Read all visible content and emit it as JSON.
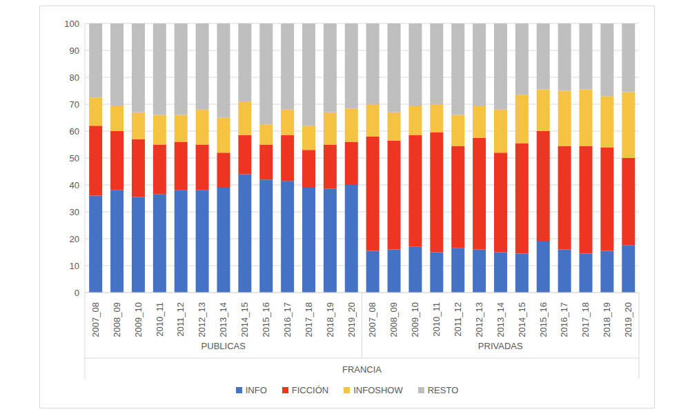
{
  "chart_data": {
    "type": "bar",
    "stacked": true,
    "grid": true,
    "legend": "bottom",
    "categories": [
      "2007_08",
      "2008_09",
      "2009_10",
      "2010_11",
      "2011_12",
      "2012_13",
      "2013_14",
      "2014_15",
      "2015_16",
      "2016_17",
      "2017_18",
      "2018_19",
      "2019_20",
      "2007_08",
      "2008_09",
      "2009_10",
      "2010_11",
      "2011_12",
      "2012_13",
      "2013_14",
      "2014_15",
      "2015_16",
      "2016_17",
      "2017_18",
      "2018_19",
      "2019_20"
    ],
    "groups": [
      "PUBLICAS",
      "PRIVADAS"
    ],
    "group_title": "FRANCIA",
    "ylim": [
      0,
      100
    ],
    "yticks": [
      0,
      10,
      20,
      30,
      40,
      50,
      60,
      70,
      80,
      90,
      100
    ],
    "series": [
      {
        "name": "INFO",
        "color": "#4472c4",
        "values": [
          36,
          38,
          35.5,
          36.5,
          38,
          38,
          39,
          44,
          42,
          41.5,
          39,
          38.5,
          40,
          15.5,
          16,
          17,
          15,
          16.5,
          16,
          15,
          14.5,
          19,
          16,
          14.5,
          15.5,
          17.5
        ]
      },
      {
        "name": "FICCIÓN",
        "color": "#ee3524",
        "values": [
          26,
          22,
          21.5,
          18.5,
          18,
          17,
          13,
          14.5,
          13,
          17,
          14,
          16.5,
          16,
          42.5,
          40.5,
          41.5,
          44.5,
          38,
          41.5,
          37,
          41,
          41,
          38.5,
          40,
          38.5,
          32.5
        ]
      },
      {
        "name": "INFOSHOW",
        "color": "#f5c342",
        "values": [
          10.5,
          9.5,
          10,
          11,
          10,
          13,
          13,
          12.5,
          7.5,
          9.5,
          9,
          12,
          12.5,
          12,
          10.5,
          11,
          10.5,
          11.5,
          12,
          16,
          18,
          15.5,
          20.5,
          21,
          19,
          24.5
        ]
      },
      {
        "name": "RESTO",
        "color": "#bfbfbf",
        "values": [
          27.5,
          30.5,
          33,
          34,
          34,
          32,
          35,
          29,
          37.5,
          32,
          38,
          33,
          31.5,
          30,
          33,
          30.5,
          30,
          34,
          30.5,
          32,
          26.5,
          24.5,
          25,
          24.5,
          27,
          25.5
        ]
      }
    ]
  }
}
